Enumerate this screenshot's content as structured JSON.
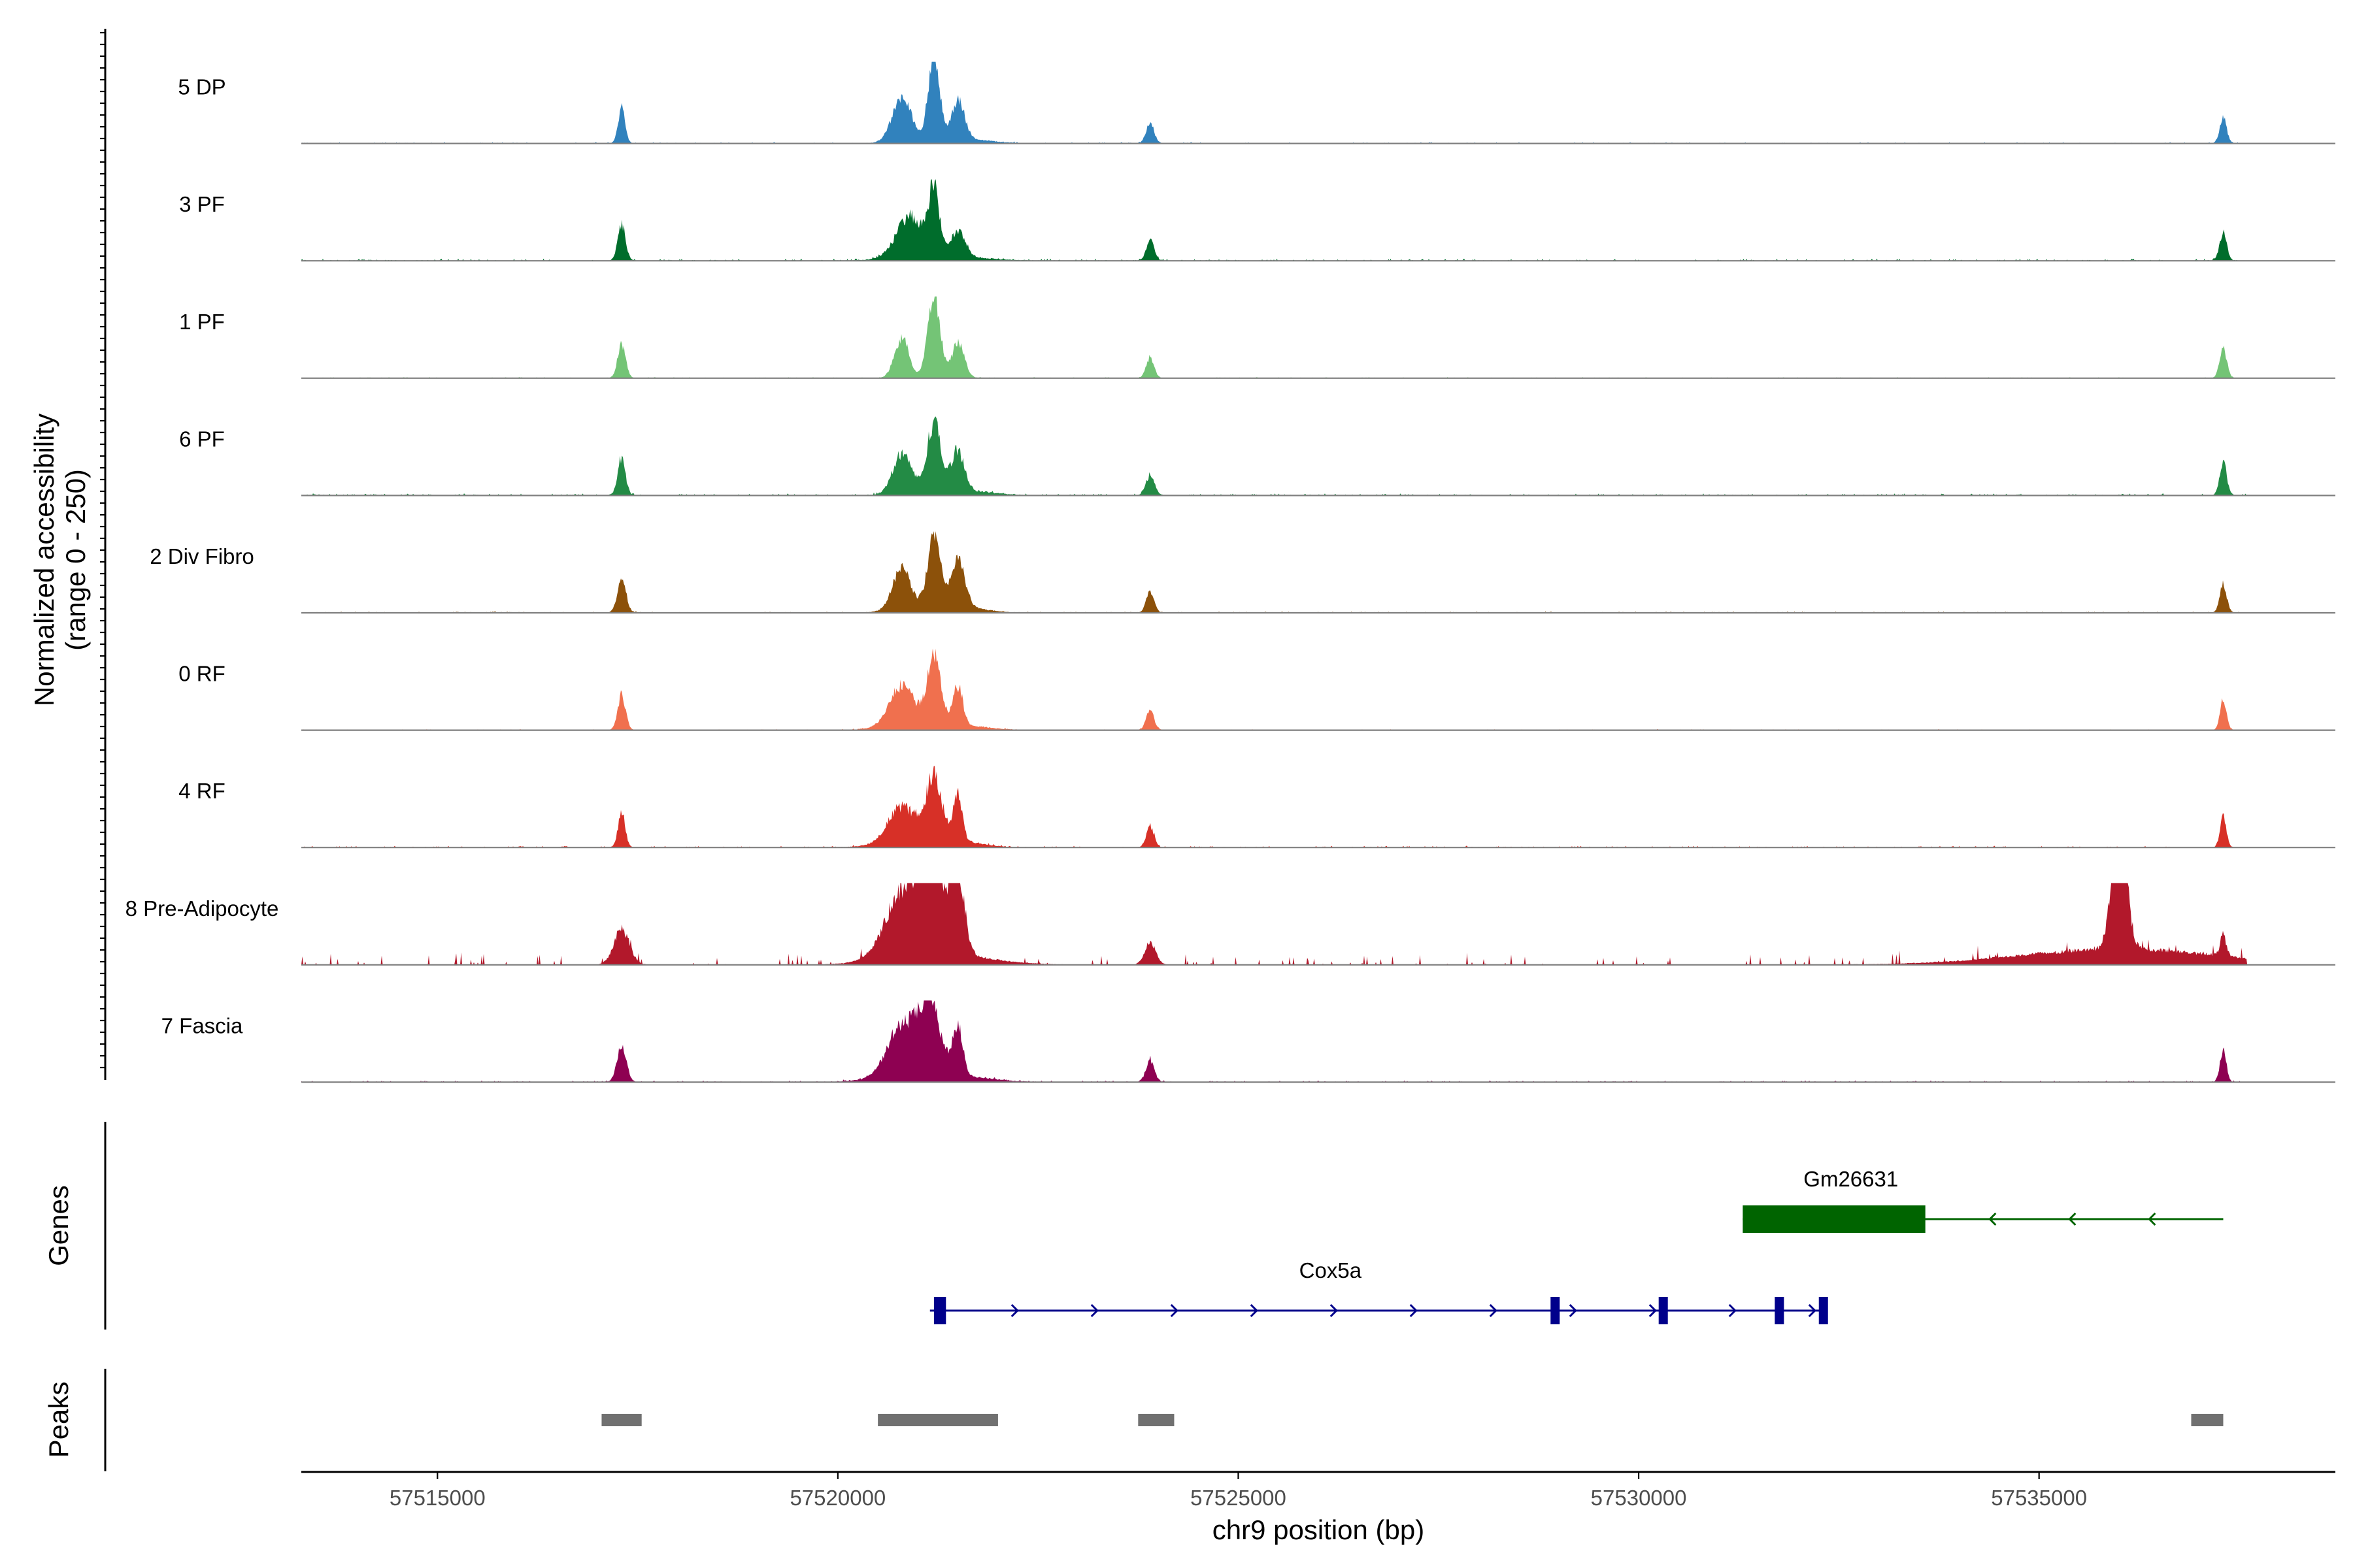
{
  "chart_data": {
    "type": "area",
    "title": "",
    "ylabel": "Normalized accessibility",
    "ylabel_range": "(range 0 - 250)",
    "xlabel": "chr9 position (bp)",
    "xlim": [
      57513300,
      57538700
    ],
    "ylim": [
      0,
      250
    ],
    "x_ticks": [
      57515000,
      57520000,
      57525000,
      57530000,
      57535000
    ],
    "x_tick_labels": [
      "57515000",
      "57520000",
      "57525000",
      "57530000",
      "57535000"
    ],
    "coverage_start": 57513300,
    "coverage_end": 57537600,
    "tracks": [
      {
        "name": "5 DP",
        "color": "#3182bd",
        "noise": 4,
        "peaks": [
          [
            57517300,
            100,
            40,
            60
          ],
          [
            57520800,
            120,
            120,
            150
          ],
          [
            57521200,
            250,
            70,
            45
          ],
          [
            57521500,
            120,
            80,
            350
          ],
          [
            57523900,
            60,
            50,
            15
          ],
          [
            57537300,
            70,
            45,
            25
          ]
        ]
      },
      {
        "name": "3 PF",
        "color": "#006d2c",
        "noise": 6,
        "peaks": [
          [
            57517300,
            100,
            50,
            20
          ],
          [
            57520900,
            120,
            160,
            280
          ],
          [
            57521200,
            190,
            70,
            25
          ],
          [
            57521500,
            80,
            90,
            400
          ],
          [
            57523900,
            60,
            50,
            15
          ],
          [
            57537300,
            80,
            45,
            20
          ]
        ]
      },
      {
        "name": "1 PF",
        "color": "#74c476",
        "noise": 3,
        "peaks": [
          [
            57517300,
            100,
            50,
            10
          ],
          [
            57520800,
            110,
            90,
            80
          ],
          [
            57521200,
            240,
            80,
            25
          ],
          [
            57521500,
            100,
            80,
            30
          ],
          [
            57523900,
            60,
            50,
            10
          ],
          [
            57537300,
            90,
            45,
            10
          ]
        ]
      },
      {
        "name": "6 PF",
        "color": "#238b45",
        "noise": 6,
        "peaks": [
          [
            57517300,
            100,
            50,
            30
          ],
          [
            57520800,
            110,
            110,
            160
          ],
          [
            57521200,
            190,
            80,
            190
          ],
          [
            57521500,
            120,
            80,
            380
          ],
          [
            57523900,
            60,
            55,
            10
          ],
          [
            57537300,
            90,
            45,
            30
          ]
        ]
      },
      {
        "name": "2 Div Fibro",
        "color": "#8c510a",
        "noise": 4,
        "peaks": [
          [
            57517300,
            100,
            55,
            20
          ],
          [
            57520800,
            120,
            110,
            200
          ],
          [
            57521200,
            200,
            85,
            40
          ],
          [
            57521500,
            150,
            85,
            300
          ],
          [
            57523900,
            60,
            50,
            15
          ],
          [
            57537300,
            80,
            45,
            15
          ]
        ]
      },
      {
        "name": "0 RF",
        "color": "#f0704e",
        "noise": 3,
        "peaks": [
          [
            57517300,
            100,
            50,
            15
          ],
          [
            57520800,
            120,
            150,
            280
          ],
          [
            57521200,
            200,
            90,
            30
          ],
          [
            57521500,
            120,
            60,
            340
          ],
          [
            57523900,
            60,
            50,
            10
          ],
          [
            57537300,
            90,
            40,
            8
          ]
        ]
      },
      {
        "name": "4 RF",
        "color": "#d73027",
        "noise": 5,
        "peaks": [
          [
            57517300,
            100,
            45,
            20
          ],
          [
            57520800,
            110,
            170,
            320
          ],
          [
            57521200,
            180,
            110,
            40
          ],
          [
            57521500,
            140,
            55,
            300
          ],
          [
            57523900,
            60,
            50,
            12
          ],
          [
            57537300,
            90,
            40,
            12
          ]
        ]
      },
      {
        "name": "8 Pre-Adipocyte",
        "color": "#b2182b",
        "noise": 16,
        "sparse": true,
        "peaks": [
          [
            57517300,
            100,
            100,
            60
          ],
          [
            57520800,
            180,
            210,
            400
          ],
          [
            57521200,
            230,
            190,
            90
          ],
          [
            57521500,
            200,
            80,
            500
          ],
          [
            57523900,
            60,
            70,
            60
          ],
          [
            57536000,
            400,
            90,
            1200
          ],
          [
            57537300,
            60,
            40,
            15
          ]
        ]
      },
      {
        "name": "7 Fascia",
        "color": "#8e0152",
        "noise": 5,
        "peaks": [
          [
            57517300,
            100,
            60,
            40
          ],
          [
            57520800,
            150,
            180,
            350
          ],
          [
            57521150,
            200,
            140,
            55
          ],
          [
            57521500,
            150,
            60,
            380
          ],
          [
            57523900,
            60,
            55,
            20
          ],
          [
            57537300,
            90,
            40,
            30
          ]
        ]
      }
    ],
    "genes": [
      {
        "name": "Gm26631",
        "color": "#006400",
        "strand": "-",
        "start": 57531300,
        "end": 57537300,
        "exons": [
          [
            57531300,
            57533580
          ]
        ],
        "thick": true
      },
      {
        "name": "Cox5a",
        "color": "#00008b",
        "strand": "+",
        "start": 57521150,
        "end": 57532350,
        "exons": [
          [
            57521200,
            57521350
          ],
          [
            57528900,
            57529000
          ],
          [
            57530250,
            57530350
          ],
          [
            57531700,
            57531800
          ],
          [
            57532250,
            57532350
          ]
        ],
        "thick": false
      }
    ],
    "peak_regions": [
      [
        57517050,
        57517550
      ],
      [
        57520500,
        57522000
      ],
      [
        57523750,
        57524200
      ],
      [
        57536900,
        57537300
      ]
    ],
    "panel_labels": {
      "genes": "Genes",
      "peaks": "Peaks"
    }
  }
}
